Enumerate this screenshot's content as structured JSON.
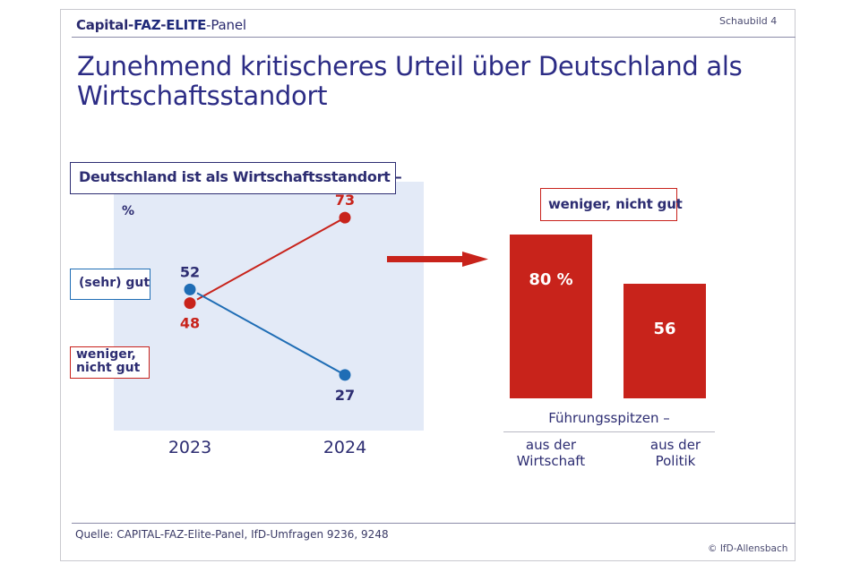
{
  "header": {
    "brand_parts": [
      "Capital-",
      "FAZ",
      "-",
      "ELITE",
      "-Panel"
    ],
    "figure_label": "Schaubild 4"
  },
  "title": "Zunehmend kritischeres Urteil über Deutschland als Wirtschaftsstandort",
  "footer": {
    "source": "Quelle: CAPITAL-FAZ-Elite-Panel, IfD-Umfragen 9236, 9248",
    "copyright": "© IfD-Allensbach"
  },
  "colors": {
    "red": "#c8231b",
    "blue": "#1f6db5",
    "navy": "#2d2d72",
    "panel_bg": "#e3eaf7"
  },
  "chart_data": [
    {
      "type": "line",
      "title": "Deutschland ist als Wirtschaftsstandort –",
      "ylabel": "%",
      "xlabel": "",
      "x": [
        "2023",
        "2024"
      ],
      "ylim": [
        0,
        100
      ],
      "grid": false,
      "legend_placement": "left",
      "series": [
        {
          "name": "(sehr) gut",
          "color": "#1f6db5",
          "values": [
            52,
            27
          ]
        },
        {
          "name": "weniger, nicht gut",
          "color": "#c8231b",
          "values": [
            48,
            73
          ]
        }
      ]
    },
    {
      "type": "bar",
      "title": "weniger, nicht gut",
      "group_label": "Führungsspitzen –",
      "categories": [
        "aus der Wirtschaft",
        "aus der Politik"
      ],
      "category_lines": [
        [
          "aus der",
          "Wirtschaft"
        ],
        [
          "aus der",
          "Politik"
        ]
      ],
      "values": [
        80,
        56
      ],
      "value_labels": [
        "80 %",
        "56"
      ],
      "ylim": [
        0,
        100
      ],
      "color": "#c8231b"
    }
  ]
}
